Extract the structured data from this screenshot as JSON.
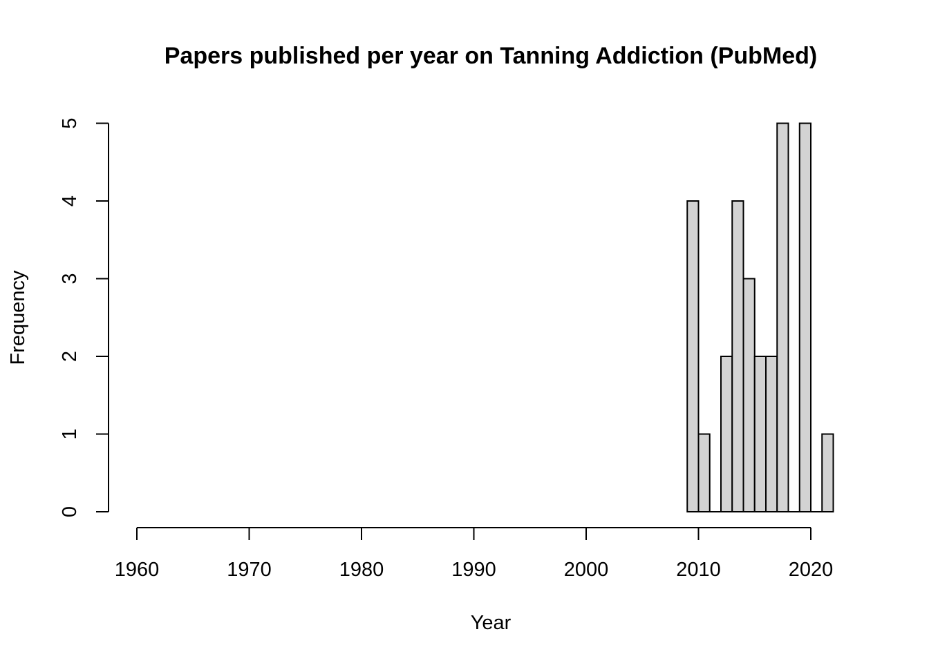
{
  "chart_data": {
    "type": "bar",
    "title": "Papers published per year on Tanning Addiction (PubMed)",
    "xlabel": "Year",
    "ylabel": "Frequency",
    "bin_width": 1,
    "bins": [
      {
        "start": 2009,
        "end": 2010,
        "value": 4
      },
      {
        "start": 2010,
        "end": 2011,
        "value": 1
      },
      {
        "start": 2011,
        "end": 2012,
        "value": 0
      },
      {
        "start": 2012,
        "end": 2013,
        "value": 2
      },
      {
        "start": 2013,
        "end": 2014,
        "value": 4
      },
      {
        "start": 2014,
        "end": 2015,
        "value": 3
      },
      {
        "start": 2015,
        "end": 2016,
        "value": 2
      },
      {
        "start": 2016,
        "end": 2017,
        "value": 2
      },
      {
        "start": 2017,
        "end": 2018,
        "value": 5
      },
      {
        "start": 2018,
        "end": 2019,
        "value": 0
      },
      {
        "start": 2019,
        "end": 2020,
        "value": 5
      },
      {
        "start": 2020,
        "end": 2021,
        "value": 0
      },
      {
        "start": 2021,
        "end": 2022,
        "value": 1
      }
    ],
    "xticks": [
      "1960",
      "1970",
      "1980",
      "1990",
      "2000",
      "2010",
      "2020"
    ],
    "yticks": [
      "0",
      "1",
      "2",
      "3",
      "4",
      "5"
    ],
    "xlim": [
      1960,
      2022
    ],
    "ylim": [
      0,
      5
    ],
    "grid": false,
    "colors": {
      "bar_fill": "#d3d3d3",
      "bar_stroke": "#000000"
    }
  }
}
